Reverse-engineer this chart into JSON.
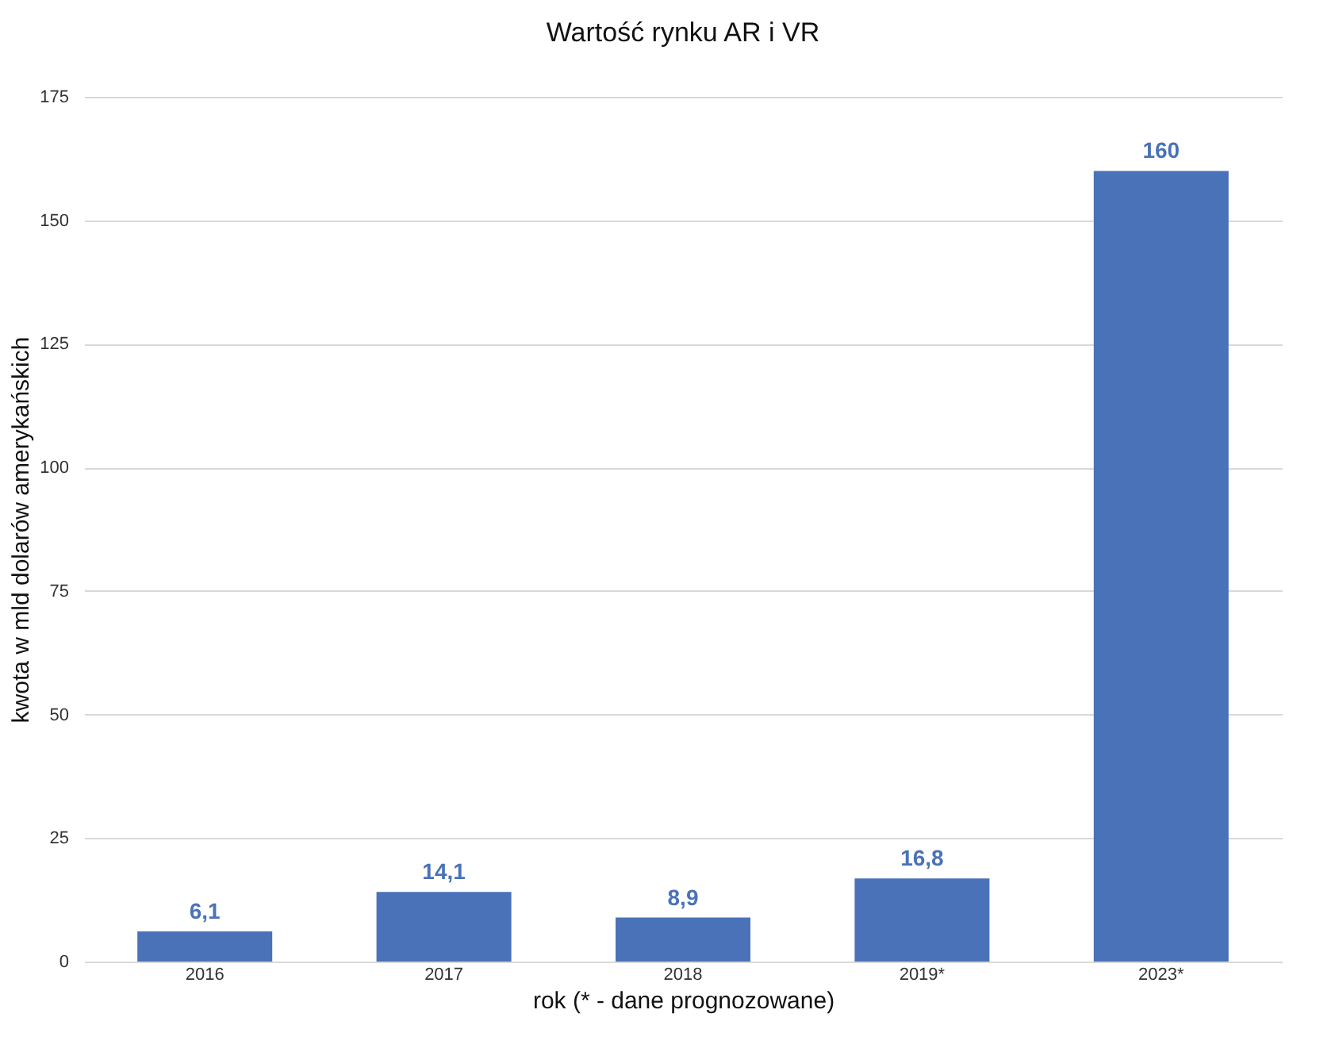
{
  "chart_data": {
    "type": "bar",
    "title": "Wartość rynku AR i VR",
    "xlabel": "rok  (* - dane prognozowane)",
    "ylabel": "kwota w mld dolarów amerykańskich",
    "categories": [
      "2016",
      "2017",
      "2018",
      "2019*",
      "2023*"
    ],
    "values": [
      6.1,
      14.1,
      8.9,
      16.8,
      160
    ],
    "value_labels": [
      "6,1",
      "14,1",
      "8,9",
      "16,8",
      "160"
    ],
    "color": "#4a72b8",
    "ylim": [
      0,
      175
    ],
    "yticks": [
      0,
      25,
      50,
      75,
      100,
      125,
      150,
      175
    ],
    "grid": "y"
  }
}
